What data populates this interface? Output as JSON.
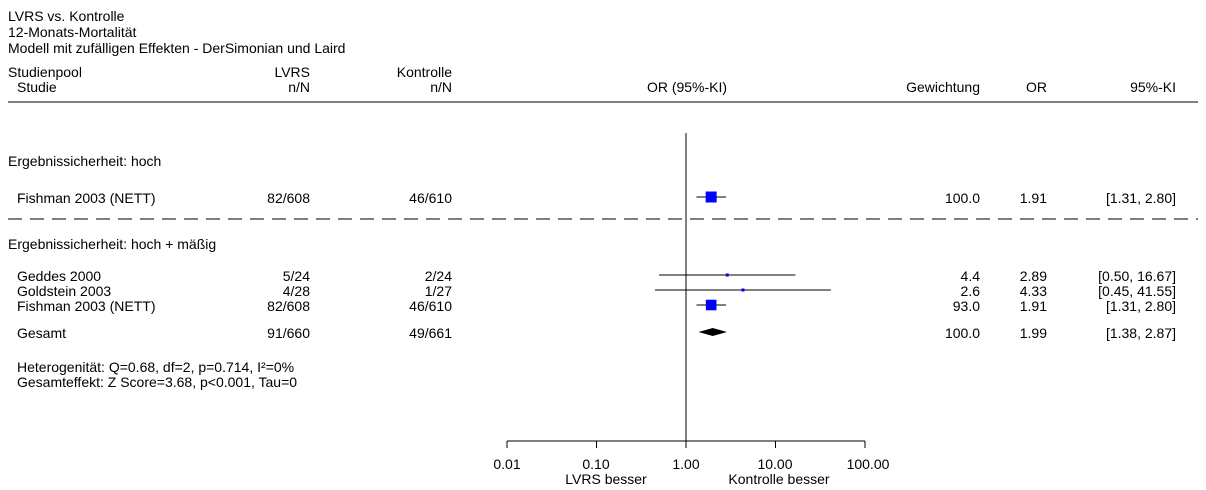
{
  "header": {
    "title": "LVRS vs. Kontrolle",
    "subtitle": "12-Monats-Mortalität",
    "model": "Modell mit zufälligen Effekten - DerSimonian und Laird"
  },
  "columns": {
    "pool": "Studienpool",
    "study": "Studie",
    "lvrs": "LVRS",
    "lvrs_n": "n/N",
    "control": "Kontrolle",
    "control_n": "n/N",
    "or_ci": "OR (95%-KI)",
    "weight": "Gewichtung",
    "or": "OR",
    "ci": "95%-KI"
  },
  "sections": [
    {
      "label": "Ergebnissicherheit: hoch",
      "studies": [
        {
          "name": "Fishman 2003 (NETT)",
          "lvrs": "82/608",
          "control": "46/610",
          "weight": "100.0",
          "or": "1.91",
          "ci": "[1.31, 2.80]"
        }
      ]
    },
    {
      "label": "Ergebnissicherheit: hoch + mäßig",
      "studies": [
        {
          "name": "Geddes 2000",
          "lvrs": "5/24",
          "control": "2/24",
          "weight": "4.4",
          "or": "2.89",
          "ci": "[0.50, 16.67]"
        },
        {
          "name": "Goldstein 2003",
          "lvrs": "4/28",
          "control": "1/27",
          "weight": "2.6",
          "or": "4.33",
          "ci": "[0.45, 41.55]"
        },
        {
          "name": "Fishman 2003 (NETT)",
          "lvrs": "82/608",
          "control": "46/610",
          "weight": "93.0",
          "or": "1.91",
          "ci": "[1.31, 2.80]"
        }
      ],
      "total": {
        "name": "Gesamt",
        "lvrs": "91/660",
        "control": "49/661",
        "weight": "100.0",
        "or": "1.99",
        "ci": "[1.38, 2.87]"
      },
      "heterogeneity": "Heterogenität: Q=0.68, df=2, p=0.714, I²=0%",
      "overall_effect": "Gesamteffekt: Z Score=3.68, p<0.001, Tau=0"
    }
  ],
  "axis": {
    "ticks": [
      "0.01",
      "0.10",
      "1.00",
      "10.00",
      "100.00"
    ],
    "left_label": "LVRS besser",
    "right_label": "Kontrolle besser"
  },
  "colors": {
    "study_marker": "#0000ff",
    "diamond": "#000000"
  },
  "chart_data": {
    "type": "forest",
    "scale": "log",
    "xlim": [
      0.01,
      100
    ],
    "reference_line": 1,
    "series": [
      {
        "section": "Ergebnissicherheit: hoch",
        "study": "Fishman 2003 (NETT)",
        "or": 1.91,
        "lower": 1.31,
        "upper": 2.8,
        "weight": 100.0
      },
      {
        "section": "Ergebnissicherheit: hoch + mäßig",
        "study": "Geddes 2000",
        "or": 2.89,
        "lower": 0.5,
        "upper": 16.67,
        "weight": 4.4
      },
      {
        "section": "Ergebnissicherheit: hoch + mäßig",
        "study": "Goldstein 2003",
        "or": 4.33,
        "lower": 0.45,
        "upper": 41.55,
        "weight": 2.6
      },
      {
        "section": "Ergebnissicherheit: hoch + mäßig",
        "study": "Fishman 2003 (NETT)",
        "or": 1.91,
        "lower": 1.31,
        "upper": 2.8,
        "weight": 93.0
      }
    ],
    "pooled": {
      "section": "Ergebnissicherheit: hoch + mäßig",
      "label": "Gesamt",
      "or": 1.99,
      "lower": 1.38,
      "upper": 2.87
    }
  }
}
